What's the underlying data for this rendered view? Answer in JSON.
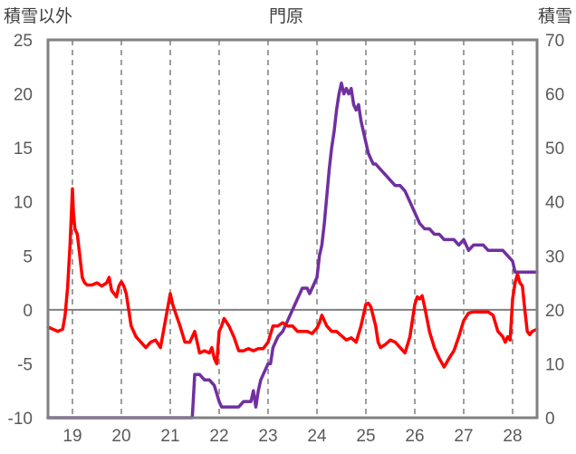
{
  "chart_data": {
    "type": "line",
    "title": "門原",
    "ylabel_left": "積雪以外",
    "ylabel_right": "積雪",
    "x_ticks": [
      "19",
      "20",
      "21",
      "22",
      "23",
      "24",
      "25",
      "26",
      "27",
      "28"
    ],
    "xlim": [
      18.5,
      28.5
    ],
    "ylim_left": [
      -10,
      25
    ],
    "ylim_right": [
      0,
      70
    ],
    "y_ticks_left": [
      -10,
      -5,
      0,
      5,
      10,
      15,
      20,
      25
    ],
    "y_ticks_right": [
      0,
      10,
      20,
      30,
      40,
      50,
      60,
      70
    ],
    "grid": {
      "vertical_dashed_at_x_ticks": true,
      "zero_line_left_axis": true
    },
    "series": [
      {
        "axis": "left",
        "color": "#ff0000",
        "x": [
          18.5,
          18.7,
          18.8,
          18.85,
          18.9,
          18.95,
          19.0,
          19.02,
          19.05,
          19.1,
          19.15,
          19.2,
          19.25,
          19.3,
          19.4,
          19.5,
          19.6,
          19.7,
          19.75,
          19.8,
          19.9,
          19.95,
          20.0,
          20.05,
          20.1,
          20.2,
          20.3,
          20.4,
          20.5,
          20.6,
          20.7,
          20.8,
          20.9,
          21.0,
          21.05,
          21.1,
          21.2,
          21.3,
          21.4,
          21.5,
          21.6,
          21.7,
          21.8,
          21.85,
          21.9,
          21.95,
          22.0,
          22.05,
          22.1,
          22.2,
          22.3,
          22.4,
          22.5,
          22.6,
          22.7,
          22.8,
          22.9,
          23.0,
          23.1,
          23.2,
          23.3,
          23.4,
          23.5,
          23.6,
          23.7,
          23.8,
          23.9,
          24.0,
          24.05,
          24.1,
          24.2,
          24.3,
          24.4,
          24.5,
          24.6,
          24.7,
          24.8,
          24.9,
          25.0,
          25.05,
          25.1,
          25.2,
          25.25,
          25.3,
          25.4,
          25.5,
          25.6,
          25.7,
          25.8,
          25.9,
          25.95,
          26.0,
          26.05,
          26.1,
          26.15,
          26.2,
          26.3,
          26.4,
          26.5,
          26.6,
          26.7,
          26.8,
          26.9,
          27.0,
          27.1,
          27.2,
          27.3,
          27.4,
          27.5,
          27.6,
          27.7,
          27.8,
          27.85,
          27.9,
          27.95,
          28.0,
          28.05,
          28.1,
          28.15,
          28.2,
          28.25,
          28.3,
          28.35,
          28.4,
          28.5
        ],
        "y": [
          -1.6,
          -2.0,
          -1.8,
          -0.5,
          2.0,
          6.0,
          11.2,
          9.0,
          7.5,
          7.0,
          5.0,
          3.0,
          2.5,
          2.3,
          2.3,
          2.5,
          2.2,
          2.5,
          3.0,
          1.8,
          1.2,
          2.2,
          2.6,
          2.2,
          1.5,
          -1.5,
          -2.5,
          -3.0,
          -3.5,
          -3.0,
          -2.8,
          -3.5,
          -1.0,
          1.5,
          0.5,
          -0.2,
          -1.5,
          -3.0,
          -3.0,
          -2.0,
          -4.0,
          -3.8,
          -4.0,
          -3.5,
          -4.5,
          -5.0,
          -2.0,
          -1.5,
          -0.8,
          -1.5,
          -2.5,
          -3.8,
          -3.8,
          -3.6,
          -3.8,
          -3.6,
          -3.6,
          -3.0,
          -1.5,
          -1.5,
          -1.2,
          -1.5,
          -1.5,
          -2.0,
          -2.0,
          -2.0,
          -2.2,
          -1.7,
          -1.2,
          -0.5,
          -1.5,
          -2.0,
          -2.0,
          -2.4,
          -2.8,
          -2.6,
          -3.0,
          -1.5,
          0.5,
          0.6,
          0.3,
          -1.5,
          -3.0,
          -3.5,
          -3.2,
          -2.8,
          -3.0,
          -3.5,
          -4.0,
          -2.5,
          -1.0,
          0.5,
          1.2,
          1.0,
          1.3,
          0.3,
          -2.0,
          -3.5,
          -4.5,
          -5.3,
          -4.5,
          -3.8,
          -2.5,
          -1.0,
          -0.3,
          -0.2,
          -0.2,
          -0.2,
          -0.2,
          -0.5,
          -2.0,
          -2.5,
          -3.0,
          -2.5,
          -2.8,
          1.0,
          2.5,
          3.3,
          2.5,
          2.2,
          0.0,
          -2.0,
          -2.3,
          -2.0,
          -1.8
        ]
      },
      {
        "axis": "right",
        "color": "#7030a0",
        "x": [
          18.5,
          21.3,
          21.35,
          21.4,
          21.45,
          21.5,
          21.55,
          21.6,
          21.7,
          21.8,
          21.9,
          22.0,
          22.05,
          22.1,
          22.2,
          22.3,
          22.4,
          22.5,
          22.6,
          22.65,
          22.7,
          22.75,
          22.8,
          22.85,
          22.9,
          23.0,
          23.05,
          23.1,
          23.2,
          23.3,
          23.4,
          23.5,
          23.6,
          23.65,
          23.7,
          23.75,
          23.8,
          23.85,
          23.9,
          23.95,
          24.0,
          24.05,
          24.1,
          24.15,
          24.2,
          24.25,
          24.3,
          24.35,
          24.4,
          24.45,
          24.5,
          24.55,
          24.6,
          24.65,
          24.7,
          24.75,
          24.8,
          24.85,
          24.9,
          24.95,
          25.0,
          25.05,
          25.1,
          25.15,
          25.2,
          25.3,
          25.4,
          25.5,
          25.6,
          25.7,
          25.8,
          25.9,
          26.0,
          26.05,
          26.1,
          26.2,
          26.3,
          26.4,
          26.5,
          26.6,
          26.7,
          26.8,
          26.9,
          27.0,
          27.05,
          27.1,
          27.2,
          27.3,
          27.4,
          27.5,
          27.6,
          27.7,
          27.8,
          27.9,
          28.0,
          28.05,
          28.1,
          28.2,
          28.3,
          28.5
        ],
        "y": [
          0,
          0,
          0,
          0,
          0,
          8,
          8,
          8,
          7,
          7,
          6,
          3,
          2,
          2,
          2,
          2,
          2,
          3,
          3,
          3,
          5,
          2,
          5,
          7,
          8,
          10,
          10,
          13,
          15,
          16,
          18,
          20,
          22,
          23,
          24,
          24,
          24,
          23,
          24,
          25,
          26,
          30,
          32,
          36,
          41,
          46,
          50,
          53,
          57,
          60,
          62,
          60,
          61,
          60,
          61,
          58,
          57,
          58,
          55,
          53,
          51,
          49,
          48,
          47,
          47,
          46,
          45,
          44,
          43,
          43,
          42,
          40,
          38,
          37,
          36,
          35,
          35,
          34,
          34,
          33,
          33,
          33,
          32,
          33,
          32,
          31,
          32,
          32,
          32,
          31,
          31,
          31,
          31,
          30,
          29,
          27,
          27,
          27,
          27,
          27
        ]
      }
    ]
  }
}
